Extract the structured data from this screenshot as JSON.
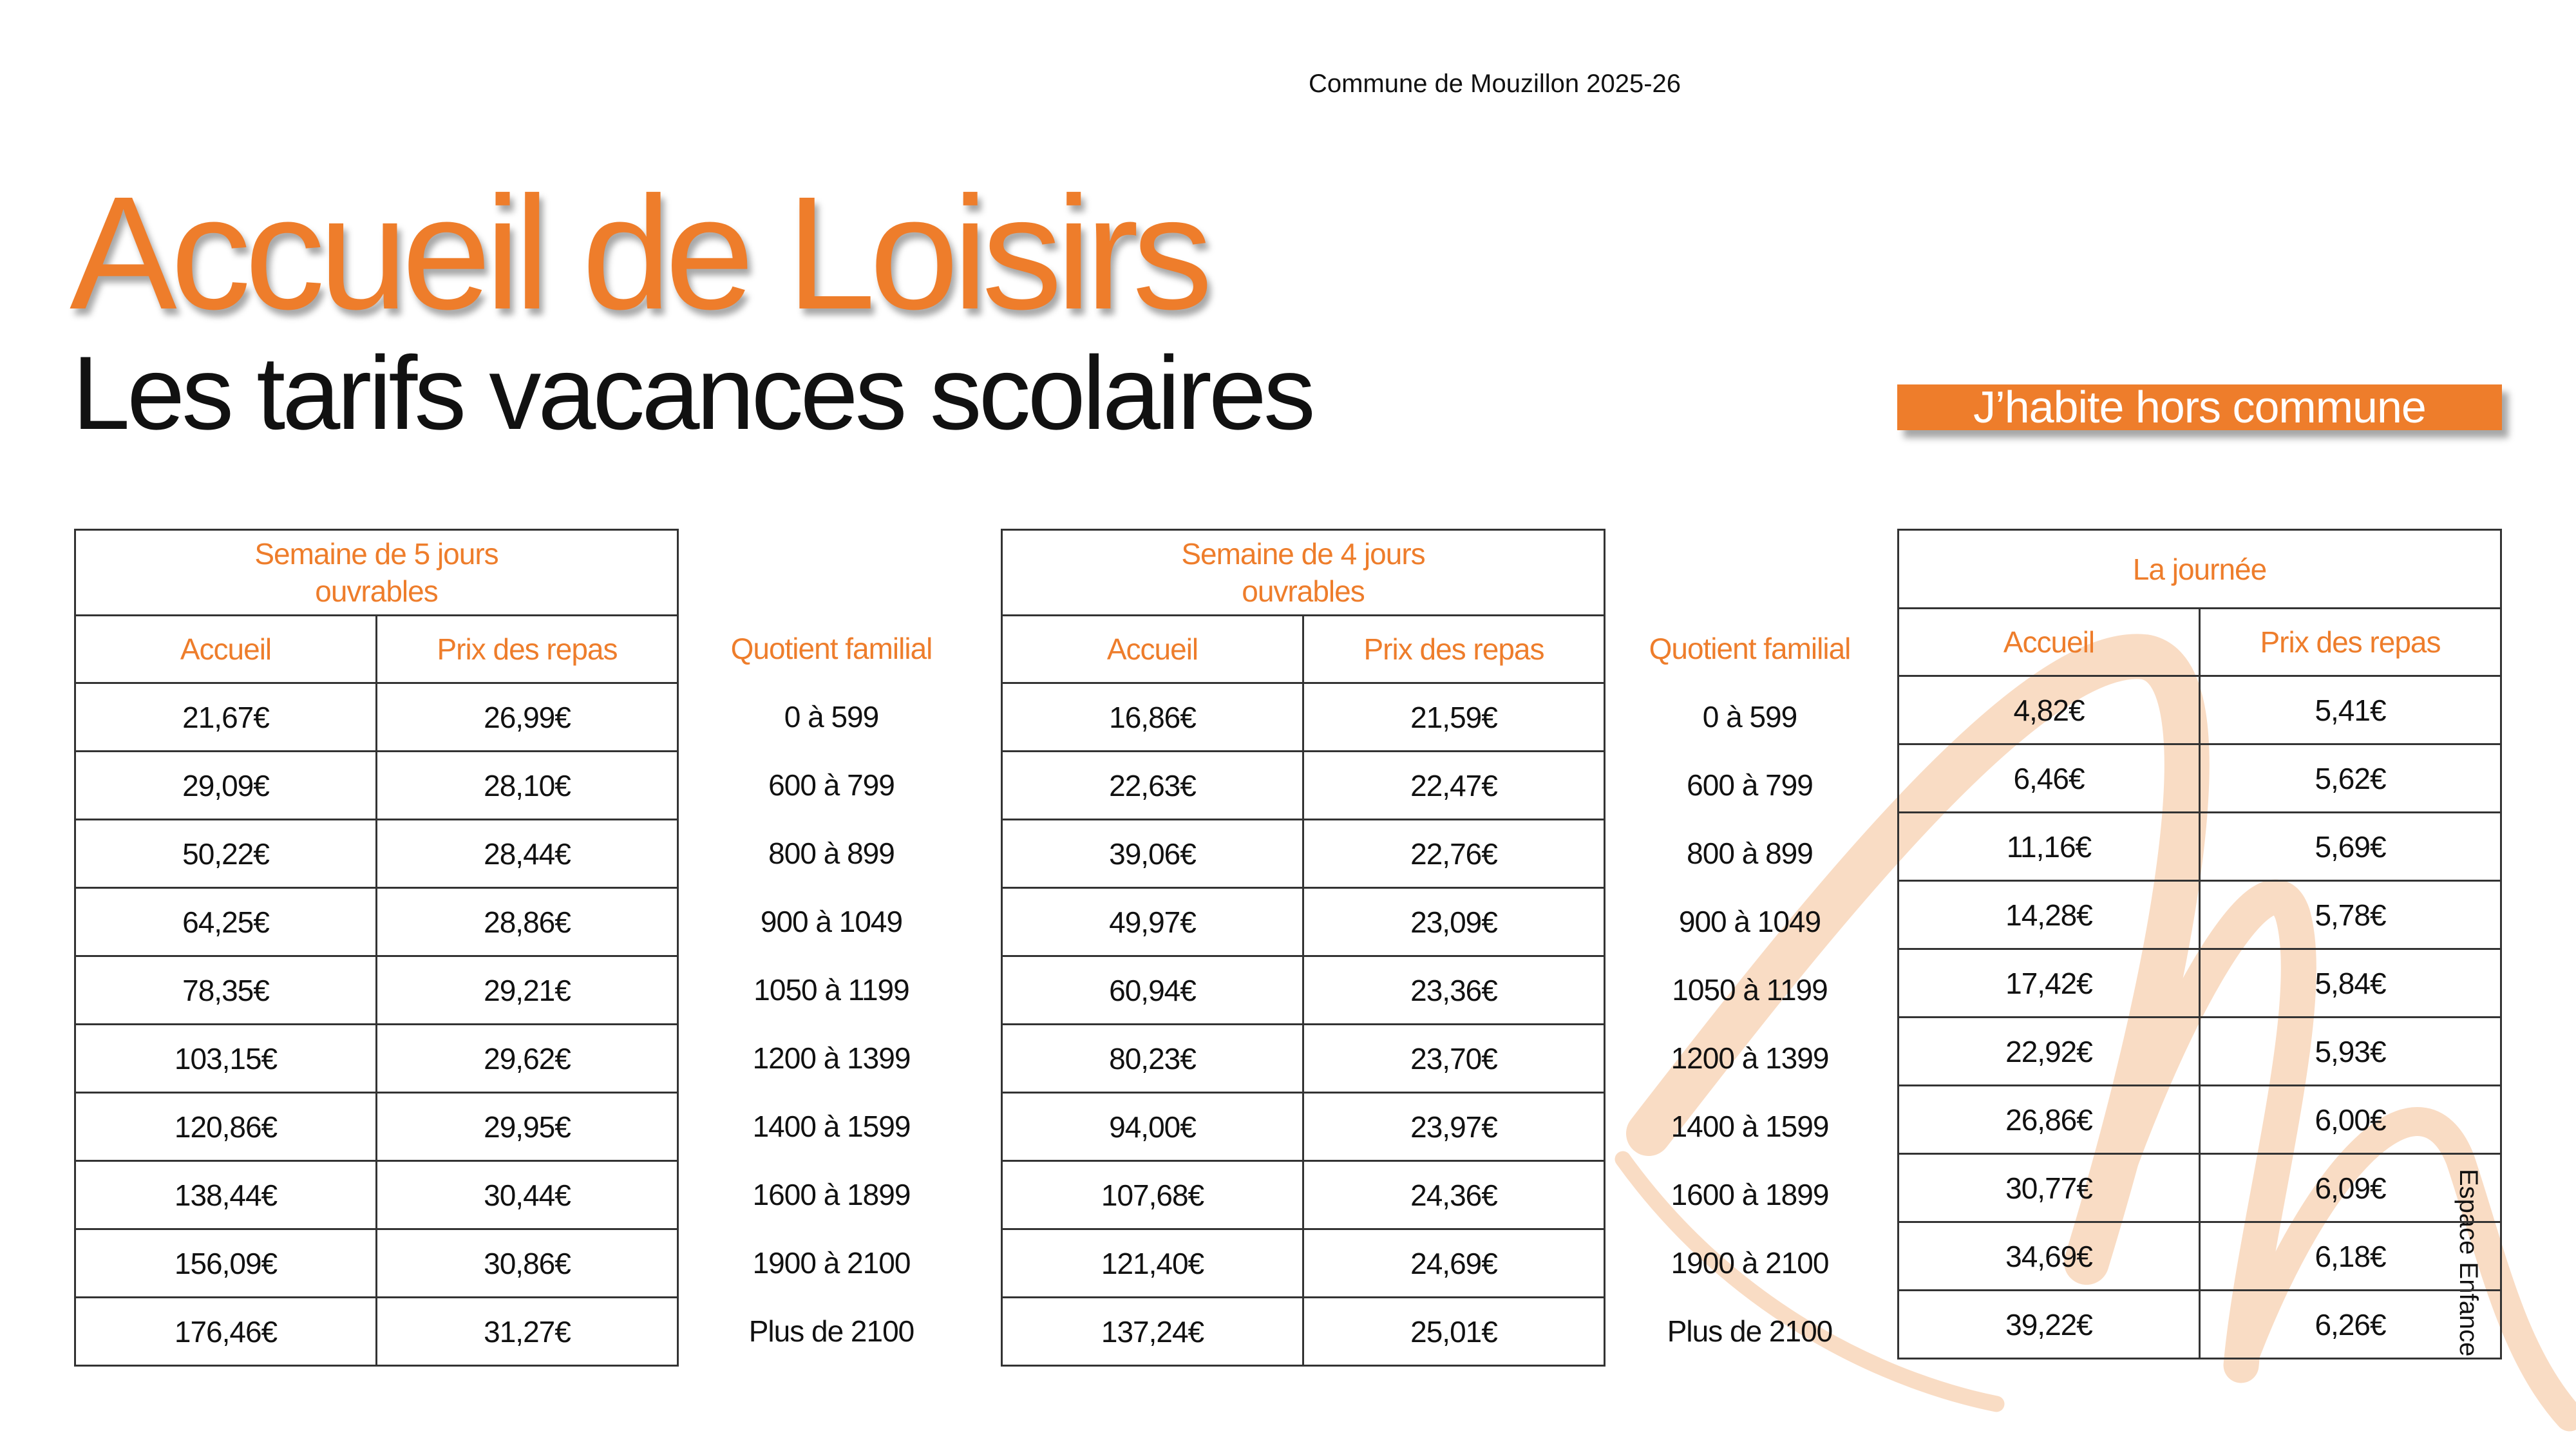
{
  "header": {
    "org": "Commune de Mouzillon 2025-26"
  },
  "title": "Accueil de Loisirs",
  "subtitle": "Les tarifs vacances scolaires",
  "badge": "J’habite hors commune",
  "side_label": "Espace Enfance",
  "tables": [
    {
      "group": [
        "Semaine de 5 jours",
        "ouvrables"
      ],
      "columns": [
        "Accueil",
        "Prix des repas"
      ],
      "rows": [
        [
          "21,67€",
          "26,99€"
        ],
        [
          "29,09€",
          "28,10€"
        ],
        [
          "50,22€",
          "28,44€"
        ],
        [
          "64,25€",
          "28,86€"
        ],
        [
          "78,35€",
          "29,21€"
        ],
        [
          "103,15€",
          "29,62€"
        ],
        [
          "120,86€",
          "29,95€"
        ],
        [
          "138,44€",
          "30,44€"
        ],
        [
          "156,09€",
          "30,86€"
        ],
        [
          "176,46€",
          "31,27€"
        ]
      ]
    },
    {
      "group": [
        "Semaine de 4 jours",
        "ouvrables"
      ],
      "columns": [
        "Accueil",
        "Prix des repas"
      ],
      "rows": [
        [
          "16,86€",
          "21,59€"
        ],
        [
          "22,63€",
          "22,47€"
        ],
        [
          "39,06€",
          "22,76€"
        ],
        [
          "49,97€",
          "23,09€"
        ],
        [
          "60,94€",
          "23,36€"
        ],
        [
          "80,23€",
          "23,70€"
        ],
        [
          "94,00€",
          "23,97€"
        ],
        [
          "107,68€",
          "24,36€"
        ],
        [
          "121,40€",
          "24,69€"
        ],
        [
          "137,24€",
          "25,01€"
        ]
      ]
    },
    {
      "group": [
        "La journée"
      ],
      "columns": [
        "Accueil",
        "Prix des repas"
      ],
      "rows": [
        [
          "4,82€",
          "5,41€"
        ],
        [
          "6,46€",
          "5,62€"
        ],
        [
          "11,16€",
          "5,69€"
        ],
        [
          "14,28€",
          "5,78€"
        ],
        [
          "17,42€",
          "5,84€"
        ],
        [
          "22,92€",
          "5,93€"
        ],
        [
          "26,86€",
          "6,00€"
        ],
        [
          "30,77€",
          "6,09€"
        ],
        [
          "34,69€",
          "6,18€"
        ],
        [
          "39,22€",
          "6,26€"
        ]
      ]
    }
  ],
  "quotients": [
    {
      "header": "Quotient familial",
      "rows": [
        "0 à 599",
        "600 à 799",
        "800 à 899",
        "900 à 1049",
        "1050 à 1199",
        "1200 à 1399",
        "1400 à 1599",
        "1600 à 1899",
        "1900 à 2100",
        "Plus de 2100"
      ]
    },
    {
      "header": "Quotient familial",
      "rows": [
        "0 à 599",
        "600 à 799",
        "800 à 899",
        "900 à 1049",
        "1050 à 1199",
        "1200 à 1399",
        "1400 à 1599",
        "1600 à 1899",
        "1900 à 2100",
        "Plus de 2100"
      ]
    }
  ]
}
